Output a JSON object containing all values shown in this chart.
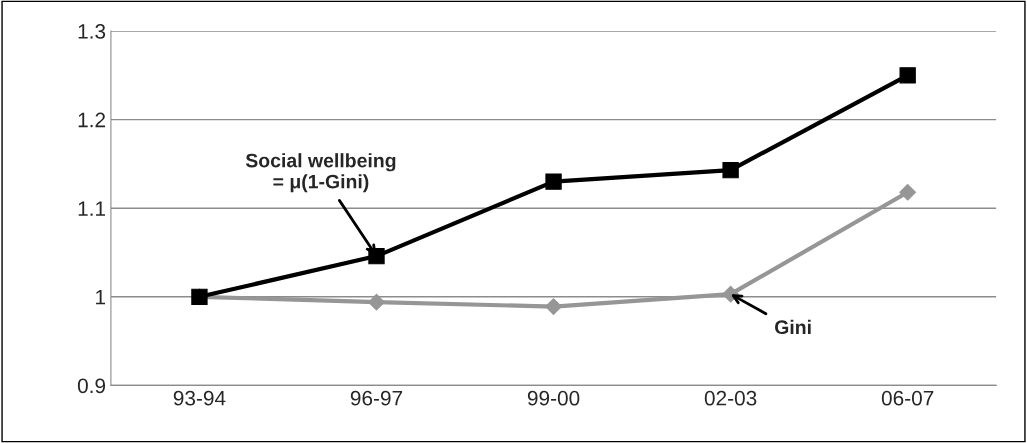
{
  "chart_data": {
    "type": "line",
    "categories": [
      "93-94",
      "96-97",
      "99-00",
      "02-03",
      "06-07"
    ],
    "series": [
      {
        "color": "#000000",
        "marker": "square",
        "values": [
          1.0,
          1.046,
          1.13,
          1.143,
          1.25
        ]
      },
      {
        "color": "#969696",
        "marker": "diamond",
        "values": [
          1.0,
          0.994,
          0.989,
          1.003,
          1.118
        ]
      }
    ],
    "ylim": [
      0.9,
      1.3
    ],
    "yticks": [
      0.9,
      1,
      1.1,
      1.2,
      1.3
    ],
    "grid": "y",
    "legend": false,
    "annotations": [
      {
        "text": "Social wellbeing\n= μ(1-Gini)",
        "x": "96-97",
        "y": 1.046
      },
      {
        "text": "Gini",
        "x": "02-03",
        "y": 1.003
      }
    ]
  }
}
